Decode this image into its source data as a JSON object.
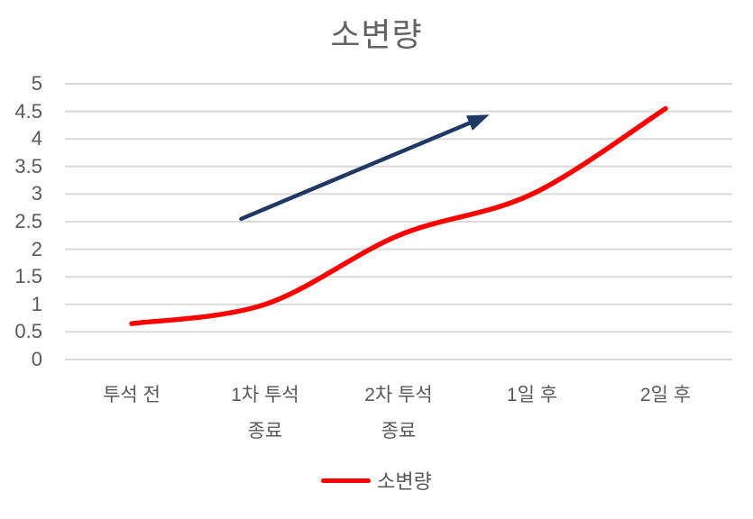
{
  "chart_data": {
    "type": "line",
    "title": "소변량",
    "categories": [
      "투석 전",
      "1차 투석\n종료",
      "2차 투석\n종료",
      "1일 후",
      "2일 후"
    ],
    "series": [
      {
        "name": "소변량",
        "color": "#ff0000",
        "values": [
          0.65,
          1,
          2.25,
          3,
          4.55
        ]
      }
    ],
    "ylim": [
      0,
      5
    ],
    "ytick_step": 0.5,
    "y_tick_labels": [
      "5",
      "4.5",
      "4",
      "3.5",
      "3",
      "2.5",
      "2",
      "1.5",
      "1",
      "0.5",
      "0"
    ],
    "grid": true,
    "gridline_color": "#d9d9d9",
    "text_color": "#595959",
    "title_color": "#636363",
    "legend_position": "bottom",
    "legend_entries": [
      {
        "label": "소변량",
        "color": "#ff0000"
      }
    ],
    "annotations": [
      {
        "type": "arrow",
        "color": "#1f3864",
        "from": {
          "category_x": 0.82,
          "value": 2.55
        },
        "to": {
          "category_x": 2.68,
          "value": 4.44
        }
      }
    ]
  }
}
